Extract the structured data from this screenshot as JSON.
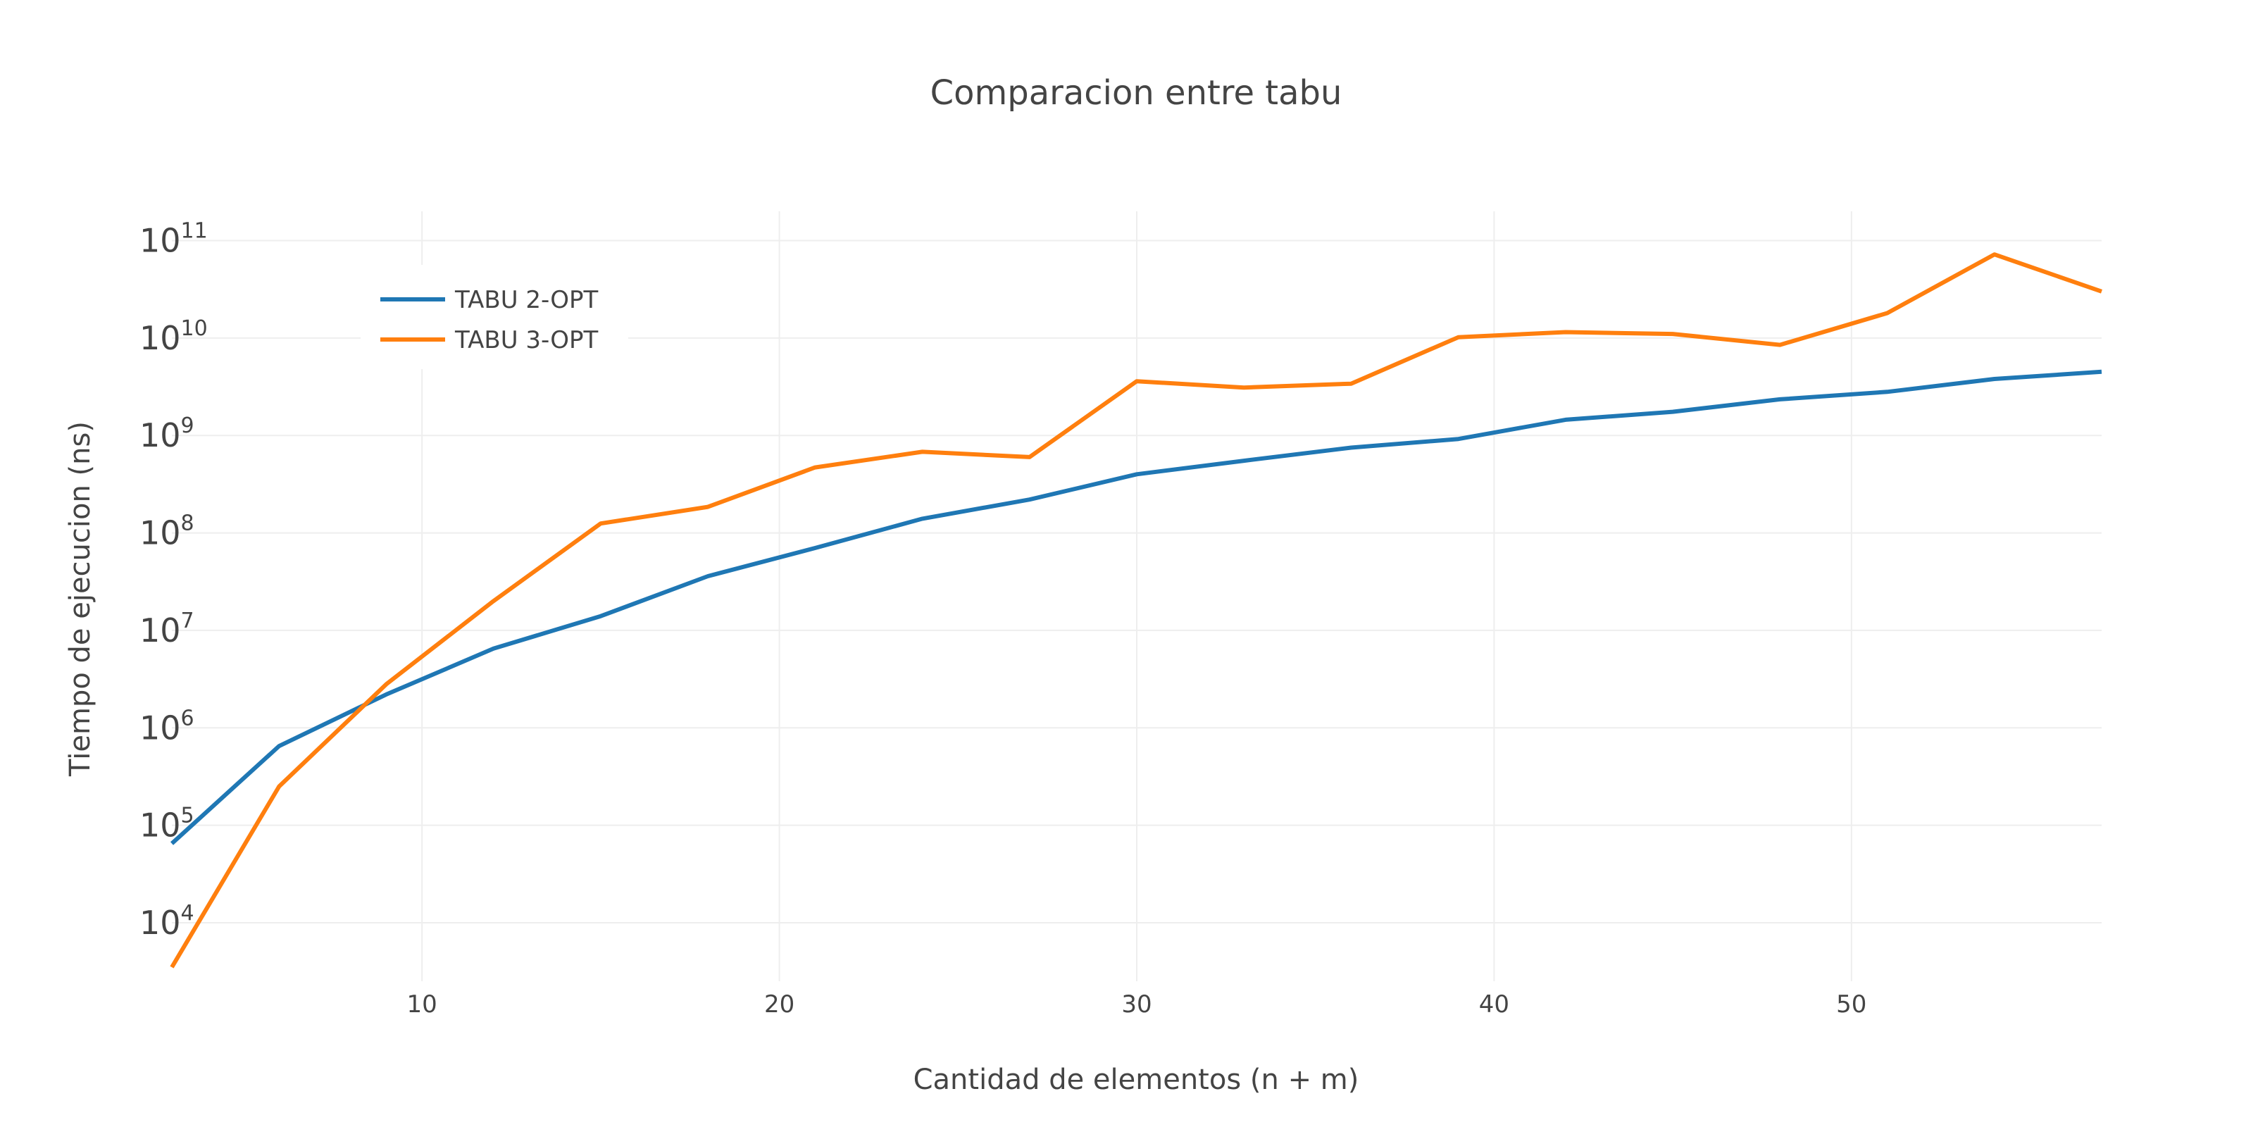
{
  "chart_data": {
    "type": "line",
    "title": "Comparacion entre tabu",
    "xlabel": "Cantidad de elementos (n + m)",
    "ylabel": "Tiempo de ejecucion (ns)",
    "xlim": [
      3,
      57
    ],
    "ylog": true,
    "ylim_exponents": [
      3.4,
      11.3
    ],
    "xticks": [
      10,
      20,
      30,
      40,
      50
    ],
    "yticks": [
      {
        "base": "10",
        "exp": "4",
        "value": 10000
      },
      {
        "base": "10",
        "exp": "5",
        "value": 100000
      },
      {
        "base": "10",
        "exp": "6",
        "value": 1000000
      },
      {
        "base": "10",
        "exp": "7",
        "value": 10000000
      },
      {
        "base": "10",
        "exp": "8",
        "value": 100000000
      },
      {
        "base": "10",
        "exp": "9",
        "value": 1000000000
      },
      {
        "base": "10",
        "exp": "10",
        "value": 10000000000
      },
      {
        "base": "10",
        "exp": "11",
        "value": 100000000000
      }
    ],
    "grid": true,
    "legend_position": "top-left",
    "x": [
      3,
      6,
      9,
      12,
      15,
      18,
      21,
      24,
      27,
      30,
      33,
      36,
      39,
      42,
      45,
      48,
      51,
      54,
      57
    ],
    "series": [
      {
        "name": "TABU 2-OPT",
        "color": "#1f77b4",
        "values": [
          65000,
          650000,
          2200000,
          6500000,
          14000000,
          36000000,
          70000000,
          140000000,
          220000000,
          400000000,
          550000000,
          750000000,
          920000000,
          1450000000,
          1750000000,
          2350000000,
          2800000000,
          3800000000,
          4500000000
        ]
      },
      {
        "name": "TABU 3-OPT",
        "color": "#ff7f0e",
        "values": [
          3500,
          250000,
          2800000,
          20000000,
          125000000,
          185000000,
          470000000,
          680000000,
          600000000,
          3600000000,
          3100000000,
          3400000000,
          10200000000,
          11500000000,
          11000000000,
          8500000000,
          18000000000,
          72000000000,
          30000000000
        ]
      }
    ]
  }
}
